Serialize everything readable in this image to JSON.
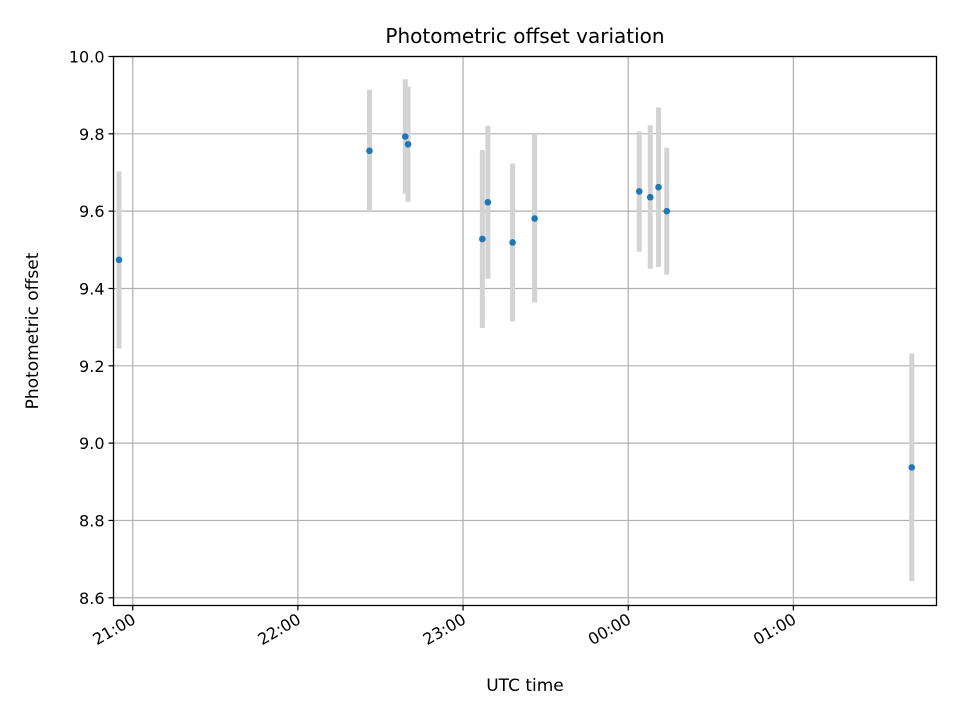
{
  "chart_data": {
    "type": "scatter",
    "title": "Photometric offset variation",
    "xlabel": "UTC time",
    "ylabel": "Photometric offset",
    "xlim": [
      "20:53",
      "01:52"
    ],
    "ylim": [
      8.58,
      10.0
    ],
    "x_ticks": [
      "21:00",
      "22:00",
      "23:00",
      "00:00",
      "01:00"
    ],
    "y_ticks": [
      "8.6",
      "8.8",
      "9.0",
      "9.2",
      "9.4",
      "9.6",
      "9.8",
      "10.0"
    ],
    "grid": true,
    "colors": {
      "point": "#1f77b4",
      "errorbar": "#d3d3d3",
      "grid": "#b0b0b0"
    },
    "points": [
      {
        "time": "20:55",
        "y": 9.474,
        "yerr_low": 9.245,
        "yerr_high": 9.703
      },
      {
        "time": "22:26",
        "y": 9.756,
        "yerr_low": 9.597,
        "yerr_high": 9.914
      },
      {
        "time": "22:39",
        "y": 9.793,
        "yerr_low": 9.645,
        "yerr_high": 9.941
      },
      {
        "time": "22:40",
        "y": 9.773,
        "yerr_low": 9.624,
        "yerr_high": 9.922
      },
      {
        "time": "23:07",
        "y": 9.528,
        "yerr_low": 9.298,
        "yerr_high": 9.758
      },
      {
        "time": "23:09",
        "y": 9.623,
        "yerr_low": 9.425,
        "yerr_high": 9.821
      },
      {
        "time": "23:18",
        "y": 9.519,
        "yerr_low": 9.315,
        "yerr_high": 9.723
      },
      {
        "time": "23:26",
        "y": 9.581,
        "yerr_low": 9.364,
        "yerr_high": 9.8
      },
      {
        "time": "00:04",
        "y": 9.651,
        "yerr_low": 9.495,
        "yerr_high": 9.806
      },
      {
        "time": "00:08",
        "y": 9.636,
        "yerr_low": 9.451,
        "yerr_high": 9.822
      },
      {
        "time": "00:11",
        "y": 9.662,
        "yerr_low": 9.456,
        "yerr_high": 9.868
      },
      {
        "time": "00:14",
        "y": 9.6,
        "yerr_low": 9.436,
        "yerr_high": 9.764
      },
      {
        "time": "01:43",
        "y": 8.937,
        "yerr_low": 8.643,
        "yerr_high": 9.232
      }
    ]
  }
}
